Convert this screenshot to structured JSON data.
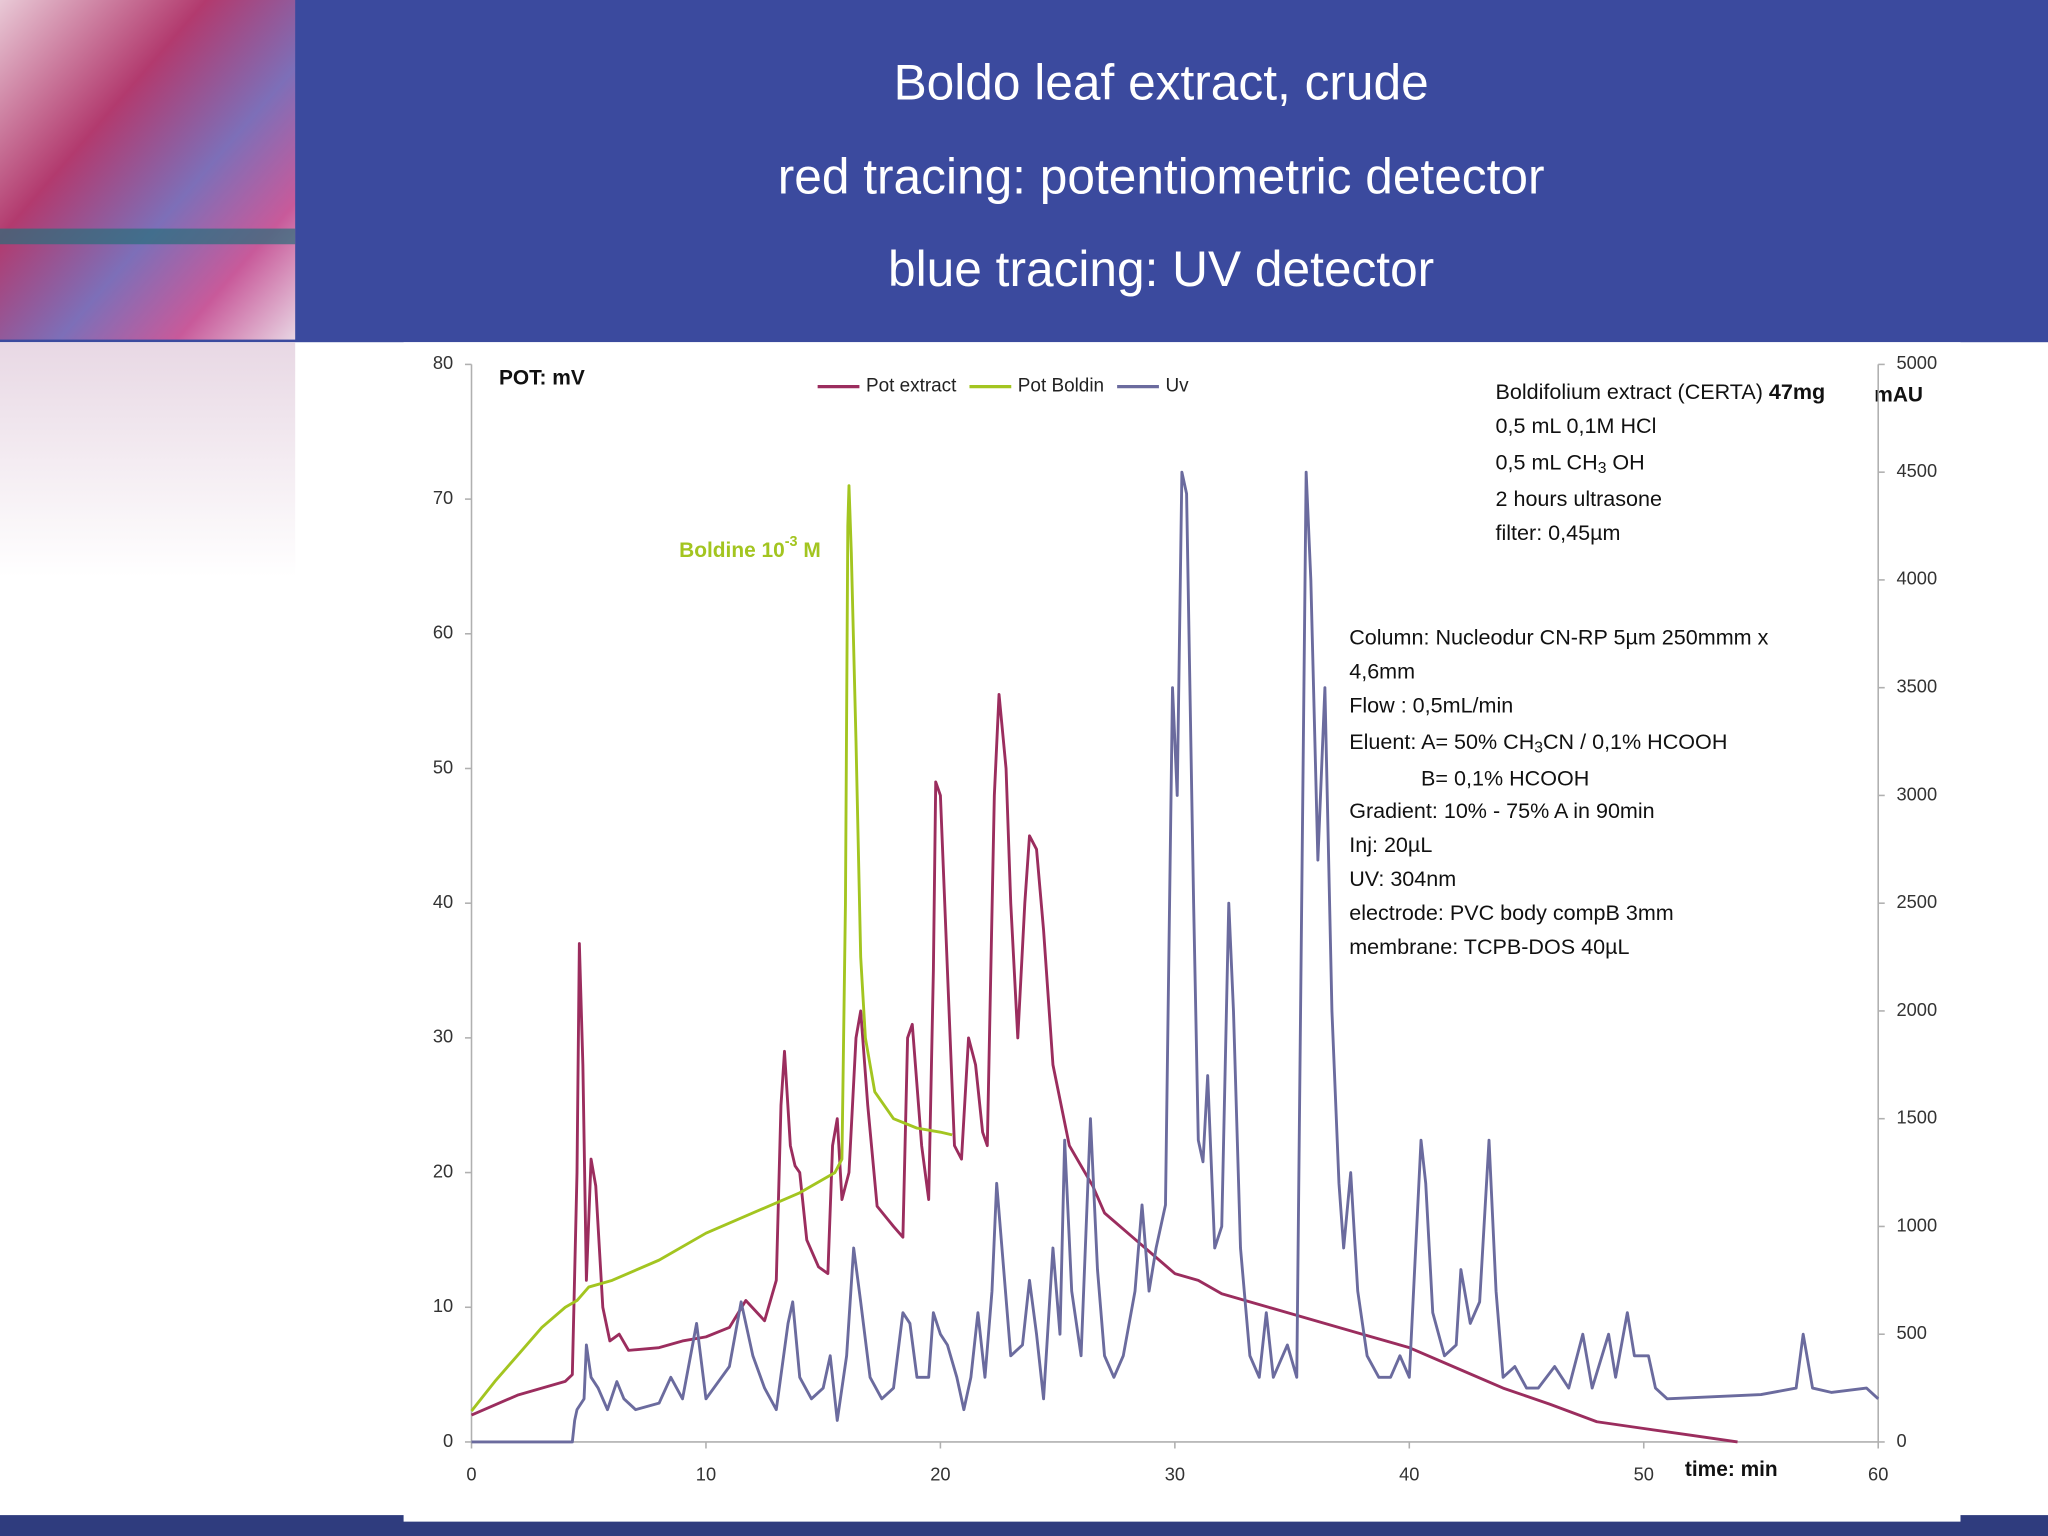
{
  "header": {
    "lines": [
      "Boldo leaf extract, crude",
      "red tracing: potentiometric detector",
      "blue tracing: UV detector"
    ]
  },
  "chart_data": {
    "type": "line",
    "y_label": "POT: mV",
    "y2_label": "mAU",
    "x_label": "time: min",
    "xlim": [
      0,
      60
    ],
    "xticks": [
      0,
      10,
      20,
      30,
      40,
      50,
      60
    ],
    "ylim": [
      0,
      80
    ],
    "yticks": [
      0,
      10,
      20,
      30,
      40,
      50,
      60,
      70,
      80
    ],
    "y2lim": [
      0,
      5000
    ],
    "y2ticks": [
      0,
      500,
      1000,
      1500,
      2000,
      2500,
      3000,
      3500,
      4000,
      4500,
      5000
    ],
    "legend": "top",
    "series": [
      {
        "name": "Pot extract",
        "color": "#9b2d5e",
        "axis": "y",
        "x": [
          0,
          2,
          4,
          4.3,
          4.5,
          4.6,
          4.75,
          4.9,
          5.1,
          5.3,
          5.6,
          5.9,
          6.3,
          6.7,
          8,
          9,
          10,
          11,
          11.7,
          12.5,
          13,
          13.2,
          13.35,
          13.6,
          13.8,
          14,
          14.3,
          14.8,
          15.2,
          15.4,
          15.6,
          15.8,
          16.1,
          16.4,
          16.6,
          16.9,
          17.3,
          18,
          18.4,
          18.6,
          18.8,
          19.2,
          19.5,
          19.7,
          19.8,
          20,
          20.3,
          20.6,
          20.9,
          21.2,
          21.5,
          21.8,
          22,
          22.3,
          22.5,
          22.8,
          23,
          23.3,
          23.6,
          23.8,
          24.1,
          24.4,
          24.8,
          25.5,
          26.5,
          27,
          28,
          29,
          30,
          31,
          32,
          34,
          36,
          38,
          40,
          42,
          44,
          46,
          48,
          50,
          52,
          54
        ],
        "values": [
          2,
          3.5,
          4.5,
          5,
          20,
          37,
          28,
          12,
          21,
          19,
          10,
          7.5,
          8,
          6.8,
          7,
          7.5,
          7.8,
          8.5,
          10.5,
          9,
          12,
          25,
          29,
          22,
          20.5,
          20,
          15,
          13,
          12.5,
          22,
          24,
          18,
          20,
          30,
          32,
          25,
          17.5,
          16,
          15.2,
          30,
          31,
          22,
          18,
          35,
          49,
          48,
          35,
          22,
          21,
          30,
          28,
          23,
          22,
          48,
          55.5,
          50,
          40,
          30,
          40,
          45,
          44,
          38,
          28,
          22,
          19,
          17,
          15.5,
          14,
          12.5,
          12,
          11,
          10,
          9,
          8,
          7,
          5.5,
          4,
          2.8,
          1.5,
          1,
          0.5,
          0
        ]
      },
      {
        "name": "Pot Boldin",
        "color": "#a3c520",
        "axis": "y",
        "x": [
          0,
          1,
          2,
          3,
          4,
          4.5,
          5,
          6,
          8,
          10,
          12,
          14,
          15.5,
          15.8,
          15.95,
          16.05,
          16.1,
          16.2,
          16.4,
          16.6,
          16.8,
          17.2,
          18,
          19,
          20,
          20.5
        ],
        "values": [
          2.3,
          4.5,
          6.5,
          8.5,
          10,
          10.5,
          11.5,
          12,
          13.5,
          15.5,
          17,
          18.5,
          20,
          21,
          40,
          68,
          71,
          66,
          52,
          36,
          30,
          26,
          24,
          23.3,
          23,
          22.8
        ]
      },
      {
        "name": "Uv",
        "color": "#6b6b9e",
        "axis": "y2",
        "x": [
          0,
          4.3,
          4.4,
          4.5,
          4.8,
          4.9,
          5.1,
          5.4,
          5.8,
          6.2,
          6.5,
          7,
          8,
          8.5,
          9,
          9.6,
          10,
          11,
          11.5,
          12,
          12.5,
          13,
          13.5,
          13.7,
          14,
          14.5,
          15,
          15.3,
          15.6,
          16,
          16.3,
          16.6,
          17,
          17.5,
          18,
          18.4,
          18.7,
          19,
          19.5,
          19.7,
          20,
          20.3,
          20.7,
          21,
          21.3,
          21.6,
          21.9,
          22.2,
          22.4,
          22.7,
          23,
          23.5,
          23.8,
          24.1,
          24.4,
          24.8,
          25.1,
          25.3,
          25.6,
          26,
          26.4,
          26.7,
          27,
          27.4,
          27.8,
          28.3,
          28.6,
          28.9,
          29.2,
          29.6,
          29.9,
          30.1,
          30.3,
          30.5,
          30.8,
          31,
          31.2,
          31.4,
          31.7,
          32,
          32.3,
          32.5,
          32.8,
          33.2,
          33.6,
          33.9,
          34.2,
          34.8,
          35.2,
          35.6,
          35.8,
          36.1,
          36.4,
          36.7,
          37,
          37.2,
          37.5,
          37.8,
          38.2,
          38.7,
          39.2,
          39.6,
          40,
          40.5,
          40.7,
          41,
          41.5,
          42,
          42.2,
          42.6,
          43,
          43.4,
          43.7,
          44,
          44.5,
          45,
          45.5,
          46.2,
          46.8,
          47.4,
          47.8,
          48.5,
          48.8,
          49.3,
          49.6,
          50.2,
          50.5,
          51,
          55,
          56.5,
          56.8,
          57.2,
          58,
          59.5,
          60
        ],
        "values": [
          0,
          0,
          100,
          150,
          200,
          450,
          300,
          250,
          150,
          280,
          200,
          150,
          180,
          300,
          200,
          550,
          200,
          350,
          650,
          400,
          250,
          150,
          550,
          650,
          300,
          200,
          250,
          400,
          100,
          400,
          900,
          650,
          300,
          200,
          250,
          600,
          550,
          300,
          300,
          600,
          500,
          450,
          300,
          150,
          300,
          600,
          300,
          700,
          1200,
          800,
          400,
          450,
          750,
          500,
          200,
          900,
          500,
          1400,
          700,
          400,
          1500,
          800,
          400,
          300,
          400,
          700,
          1100,
          700,
          900,
          1100,
          3500,
          3000,
          4500,
          4400,
          2500,
          1400,
          1300,
          1700,
          900,
          1000,
          2500,
          2000,
          900,
          400,
          300,
          600,
          300,
          450,
          300,
          4500,
          4000,
          2700,
          3500,
          2000,
          1200,
          900,
          1250,
          700,
          400,
          300,
          300,
          400,
          300,
          1400,
          1200,
          600,
          400,
          450,
          800,
          550,
          650,
          1400,
          700,
          300,
          350,
          250,
          250,
          350,
          250,
          500,
          250,
          500,
          300,
          600,
          400,
          400,
          250,
          200,
          220,
          250,
          500,
          250,
          230,
          250,
          200
        ]
      }
    ],
    "annotations": {
      "boldine": [
        "Boldine 10",
        "-3",
        " M"
      ],
      "sample": [
        [
          "Boldifolium extract (CERTA) ",
          "47mg"
        ],
        "0,5 mL 0,1M HCl",
        [
          "0,5 mL CH",
          "3",
          " OH"
        ],
        "2 hours ultrasone",
        "filter: 0,45µm"
      ],
      "method": [
        "Column: Nucleodur CN-RP 5µm 250mmm x",
        "4,6mm",
        "Flow : 0,5mL/min",
        [
          "Eluent: A= 50% CH",
          "3",
          "CN / 0,1% HCOOH"
        ],
        "B= 0,1% HCOOH",
        "Gradient: 10% - 75% A in 90min",
        "Inj: 20µL",
        "UV: 304nm",
        "electrode: PVC body compB 3mm",
        "membrane: TCPB-DOS 40µL"
      ]
    }
  }
}
